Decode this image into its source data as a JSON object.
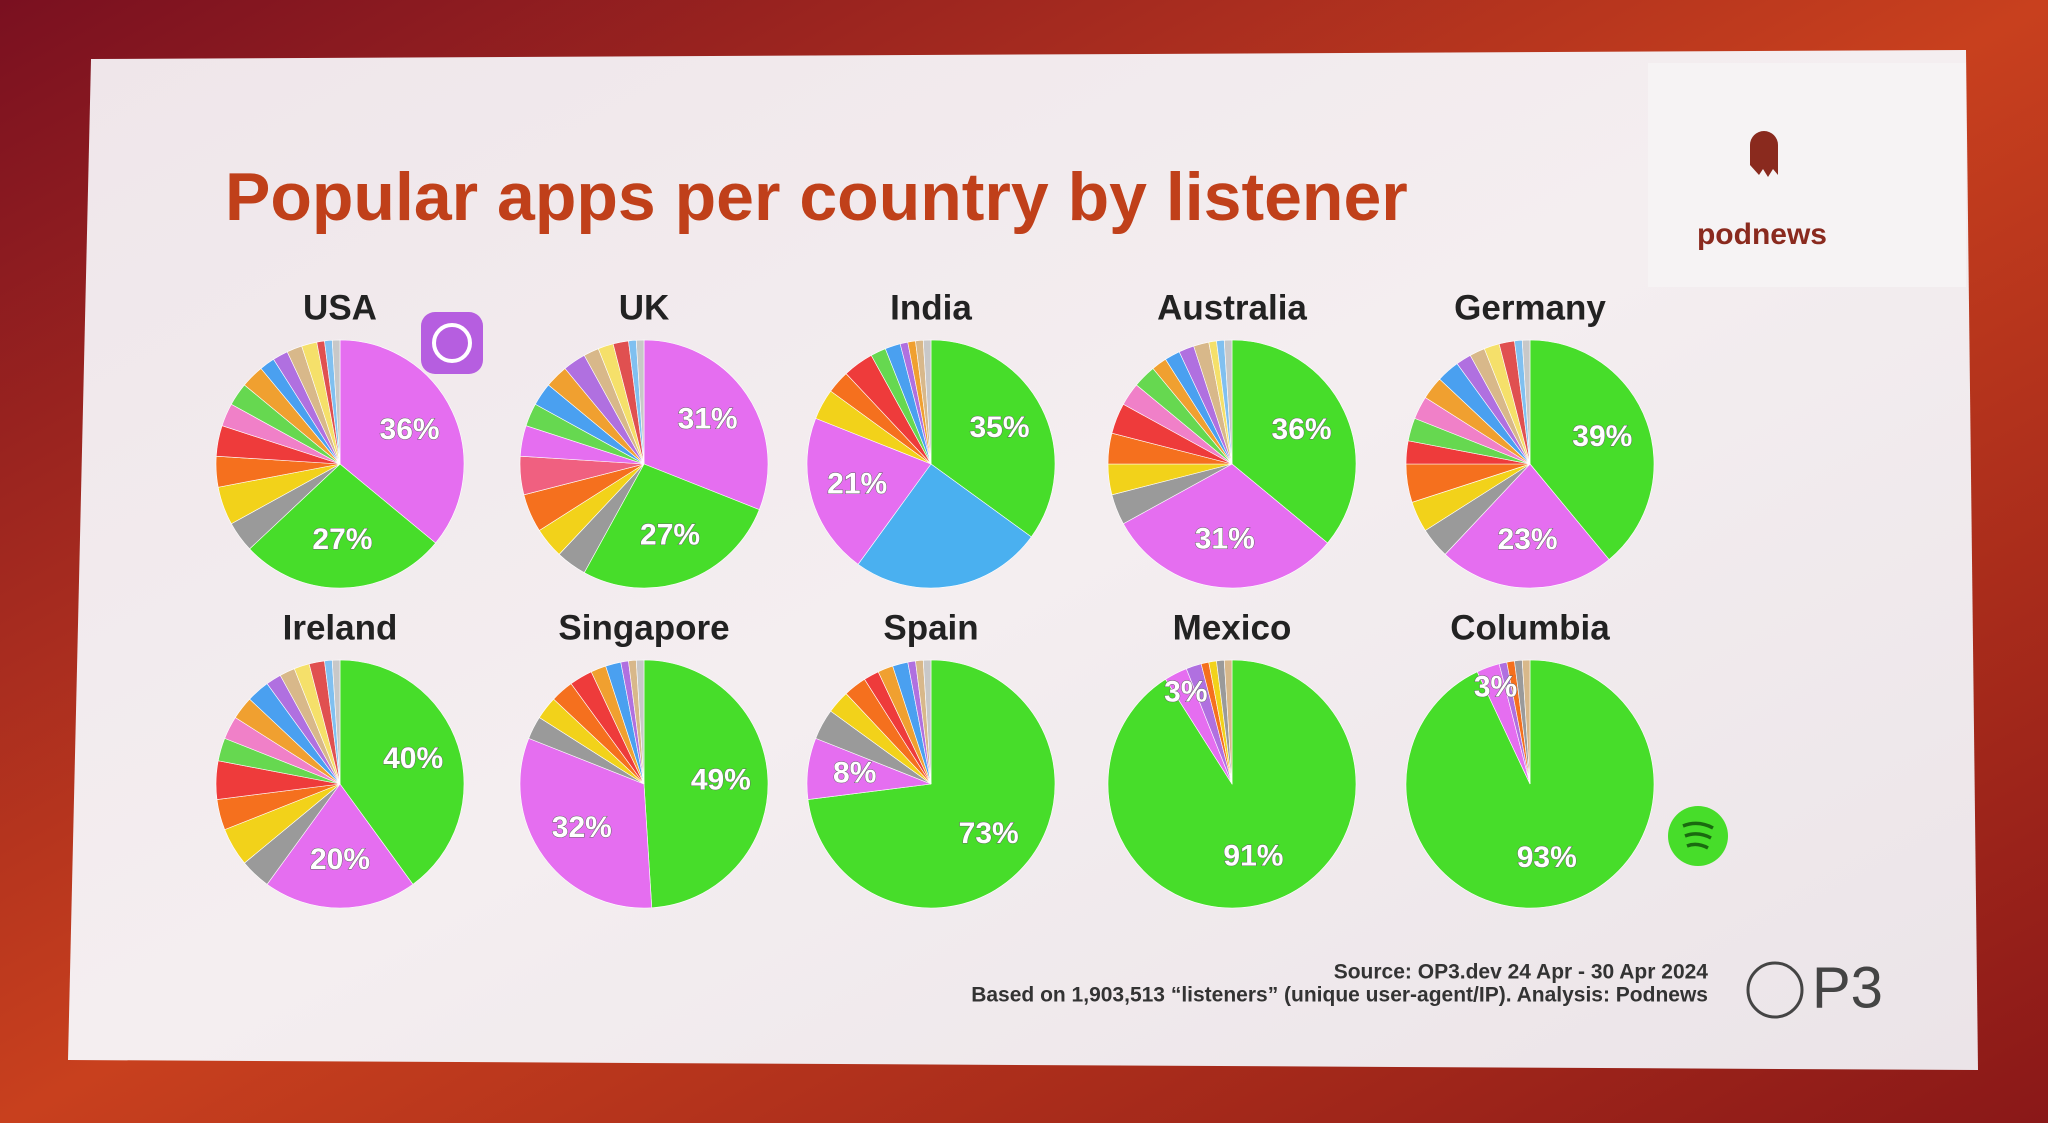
{
  "title": "Popular apps per country by listener",
  "logo": "podnews",
  "source": "Source: OP3.dev 24 Apr - 30 Apr 2024",
  "note": "Based on 1,903,513 “listeners” (unique user-agent/IP). Analysis: Podnews",
  "brand": "P3",
  "chart_data": [
    {
      "type": "pie",
      "title": "USA",
      "values": [
        36,
        27,
        4,
        5,
        4,
        4,
        3,
        3,
        3,
        2,
        2,
        2,
        2,
        1,
        1,
        1
      ],
      "value_labels": [
        "36%",
        "27%",
        null,
        null,
        null,
        null,
        null,
        null,
        null,
        null,
        null,
        null,
        null,
        null,
        null,
        null
      ],
      "colors": [
        "#e56ef0",
        "#47dd2a",
        "#9a9a9a",
        "#f2d21a",
        "#f5701e",
        "#ee3b3b",
        "#f080c8",
        "#66d850",
        "#f0a030",
        "#4aa0f0",
        "#b070e0",
        "#d8b88a",
        "#f5e06a",
        "#e05050",
        "#80c0f0",
        "#c8c8c8"
      ]
    },
    {
      "type": "pie",
      "title": "UK",
      "values": [
        31,
        27,
        4,
        4,
        5,
        5,
        4,
        3,
        3,
        3,
        3,
        2,
        2,
        2,
        1,
        1
      ],
      "value_labels": [
        "31%",
        "27%",
        null,
        null,
        null,
        null,
        null,
        null,
        null,
        null,
        null,
        null,
        null,
        null,
        null,
        null
      ],
      "colors": [
        "#e56ef0",
        "#47dd2a",
        "#9a9a9a",
        "#f2d21a",
        "#f5701e",
        "#f06080",
        "#e56ef0",
        "#66d850",
        "#4aa0f0",
        "#f0a030",
        "#b070e0",
        "#d8b88a",
        "#f5e06a",
        "#e05050",
        "#80c0f0",
        "#c8c8c8"
      ]
    },
    {
      "type": "pie",
      "title": "India",
      "values": [
        35,
        25,
        21,
        4,
        3,
        4,
        2,
        2,
        1,
        1,
        1,
        1
      ],
      "value_labels": [
        "35%",
        null,
        "21%",
        null,
        null,
        null,
        null,
        null,
        null,
        null,
        null,
        null
      ],
      "colors": [
        "#47dd2a",
        "#4ab0f0",
        "#e56ef0",
        "#f2d21a",
        "#f5701e",
        "#ee3b3b",
        "#66d850",
        "#4aa0f0",
        "#b070e0",
        "#f0a030",
        "#d8b88a",
        "#c8c8c8"
      ]
    },
    {
      "type": "pie",
      "title": "Australia",
      "values": [
        36,
        31,
        4,
        4,
        4,
        4,
        3,
        3,
        2,
        2,
        2,
        2,
        1,
        1,
        1
      ],
      "value_labels": [
        "36%",
        "31%",
        null,
        null,
        null,
        null,
        null,
        null,
        null,
        null,
        null,
        null,
        null,
        null,
        null
      ],
      "colors": [
        "#47dd2a",
        "#e56ef0",
        "#9a9a9a",
        "#f2d21a",
        "#f5701e",
        "#ee3b3b",
        "#f080c8",
        "#66d850",
        "#f0a030",
        "#4aa0f0",
        "#b070e0",
        "#d8b88a",
        "#f5e06a",
        "#80c0f0",
        "#c8c8c8"
      ]
    },
    {
      "type": "pie",
      "title": "Germany",
      "values": [
        39,
        23,
        4,
        4,
        5,
        3,
        3,
        3,
        3,
        3,
        2,
        2,
        2,
        2,
        1,
        1
      ],
      "value_labels": [
        "39%",
        "23%",
        null,
        null,
        null,
        null,
        null,
        null,
        null,
        null,
        null,
        null,
        null,
        null,
        null,
        null
      ],
      "colors": [
        "#47dd2a",
        "#e56ef0",
        "#9a9a9a",
        "#f2d21a",
        "#f5701e",
        "#ee3b3b",
        "#66d850",
        "#f080c8",
        "#f0a030",
        "#4aa0f0",
        "#b070e0",
        "#d8b88a",
        "#f5e06a",
        "#e05050",
        "#80c0f0",
        "#c8c8c8"
      ]
    },
    {
      "type": "pie",
      "title": "Ireland",
      "values": [
        40,
        20,
        4,
        5,
        4,
        5,
        3,
        3,
        3,
        3,
        2,
        2,
        2,
        2,
        1,
        1
      ],
      "value_labels": [
        "40%",
        "20%",
        null,
        null,
        null,
        null,
        null,
        null,
        null,
        null,
        null,
        null,
        null,
        null,
        null,
        null
      ],
      "colors": [
        "#47dd2a",
        "#e56ef0",
        "#9a9a9a",
        "#f2d21a",
        "#f5701e",
        "#ee3b3b",
        "#66d850",
        "#f080c8",
        "#f0a030",
        "#4aa0f0",
        "#b070e0",
        "#d8b88a",
        "#f5e06a",
        "#e05050",
        "#80c0f0",
        "#c8c8c8"
      ]
    },
    {
      "type": "pie",
      "title": "Singapore",
      "values": [
        49,
        32,
        3,
        3,
        3,
        3,
        2,
        2,
        1,
        1,
        1
      ],
      "value_labels": [
        "49%",
        "32%",
        null,
        null,
        null,
        null,
        null,
        null,
        null,
        null,
        null
      ],
      "colors": [
        "#47dd2a",
        "#e56ef0",
        "#9a9a9a",
        "#f2d21a",
        "#f5701e",
        "#ee3b3b",
        "#f0a030",
        "#4aa0f0",
        "#b070e0",
        "#d8b88a",
        "#c8c8c8"
      ]
    },
    {
      "type": "pie",
      "title": "Spain",
      "values": [
        73,
        8,
        4,
        3,
        3,
        2,
        2,
        2,
        1,
        1,
        1
      ],
      "value_labels": [
        "73%",
        "8%",
        null,
        null,
        null,
        null,
        null,
        null,
        null,
        null,
        null
      ],
      "colors": [
        "#47dd2a",
        "#e56ef0",
        "#9a9a9a",
        "#f2d21a",
        "#f5701e",
        "#ee3b3b",
        "#f0a030",
        "#4aa0f0",
        "#b070e0",
        "#d8b88a",
        "#c8c8c8"
      ]
    },
    {
      "type": "pie",
      "title": "Mexico",
      "values": [
        91,
        3,
        2,
        1,
        1,
        1,
        1
      ],
      "value_labels": [
        "91%",
        "3%",
        null,
        null,
        null,
        null,
        null
      ],
      "colors": [
        "#47dd2a",
        "#e56ef0",
        "#b070e0",
        "#f5701e",
        "#f2d21a",
        "#9a9a9a",
        "#d8b88a"
      ]
    },
    {
      "type": "pie",
      "title": "Columbia",
      "values": [
        93,
        3,
        1,
        1,
        1,
        1
      ],
      "value_labels": [
        "93%",
        "3%",
        null,
        null,
        null,
        null
      ],
      "colors": [
        "#47dd2a",
        "#e56ef0",
        "#b070e0",
        "#f5701e",
        "#9a9a9a",
        "#d8b88a"
      ]
    }
  ]
}
